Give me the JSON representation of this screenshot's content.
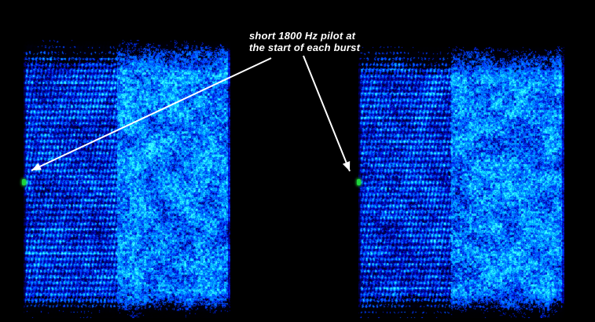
{
  "figure": {
    "type": "spectrogram-figure",
    "background_color": "#000000"
  },
  "annotation": {
    "line1": "short 1800 Hz pilot at",
    "line2": "the start of each burst",
    "text_color": "#ffffff",
    "arrow_color": "#ffffff"
  },
  "pilot": {
    "label": "1800 Hz pilot marker",
    "color": "#1ed43c"
  },
  "chart_data": {
    "type": "heatmap",
    "subtype": "spectrogram",
    "title": "",
    "xlabel": "",
    "ylabel": "",
    "axes_visible": false,
    "grid": false,
    "legend": false,
    "annotations": [
      "short 1800 Hz pilot at the start of each burst"
    ],
    "palette": [
      "#000000",
      "#001b7a",
      "#0046d0",
      "#1b86ff",
      "#52ccff"
    ],
    "pilot_color": "#1ed43c",
    "bursts": [
      {
        "name": "burst 1",
        "pilot_frequency_hz": 1800,
        "pilot_position": "start of burst"
      },
      {
        "name": "burst 2",
        "pilot_frequency_hz": 1800,
        "pilot_position": "start of burst"
      }
    ]
  }
}
